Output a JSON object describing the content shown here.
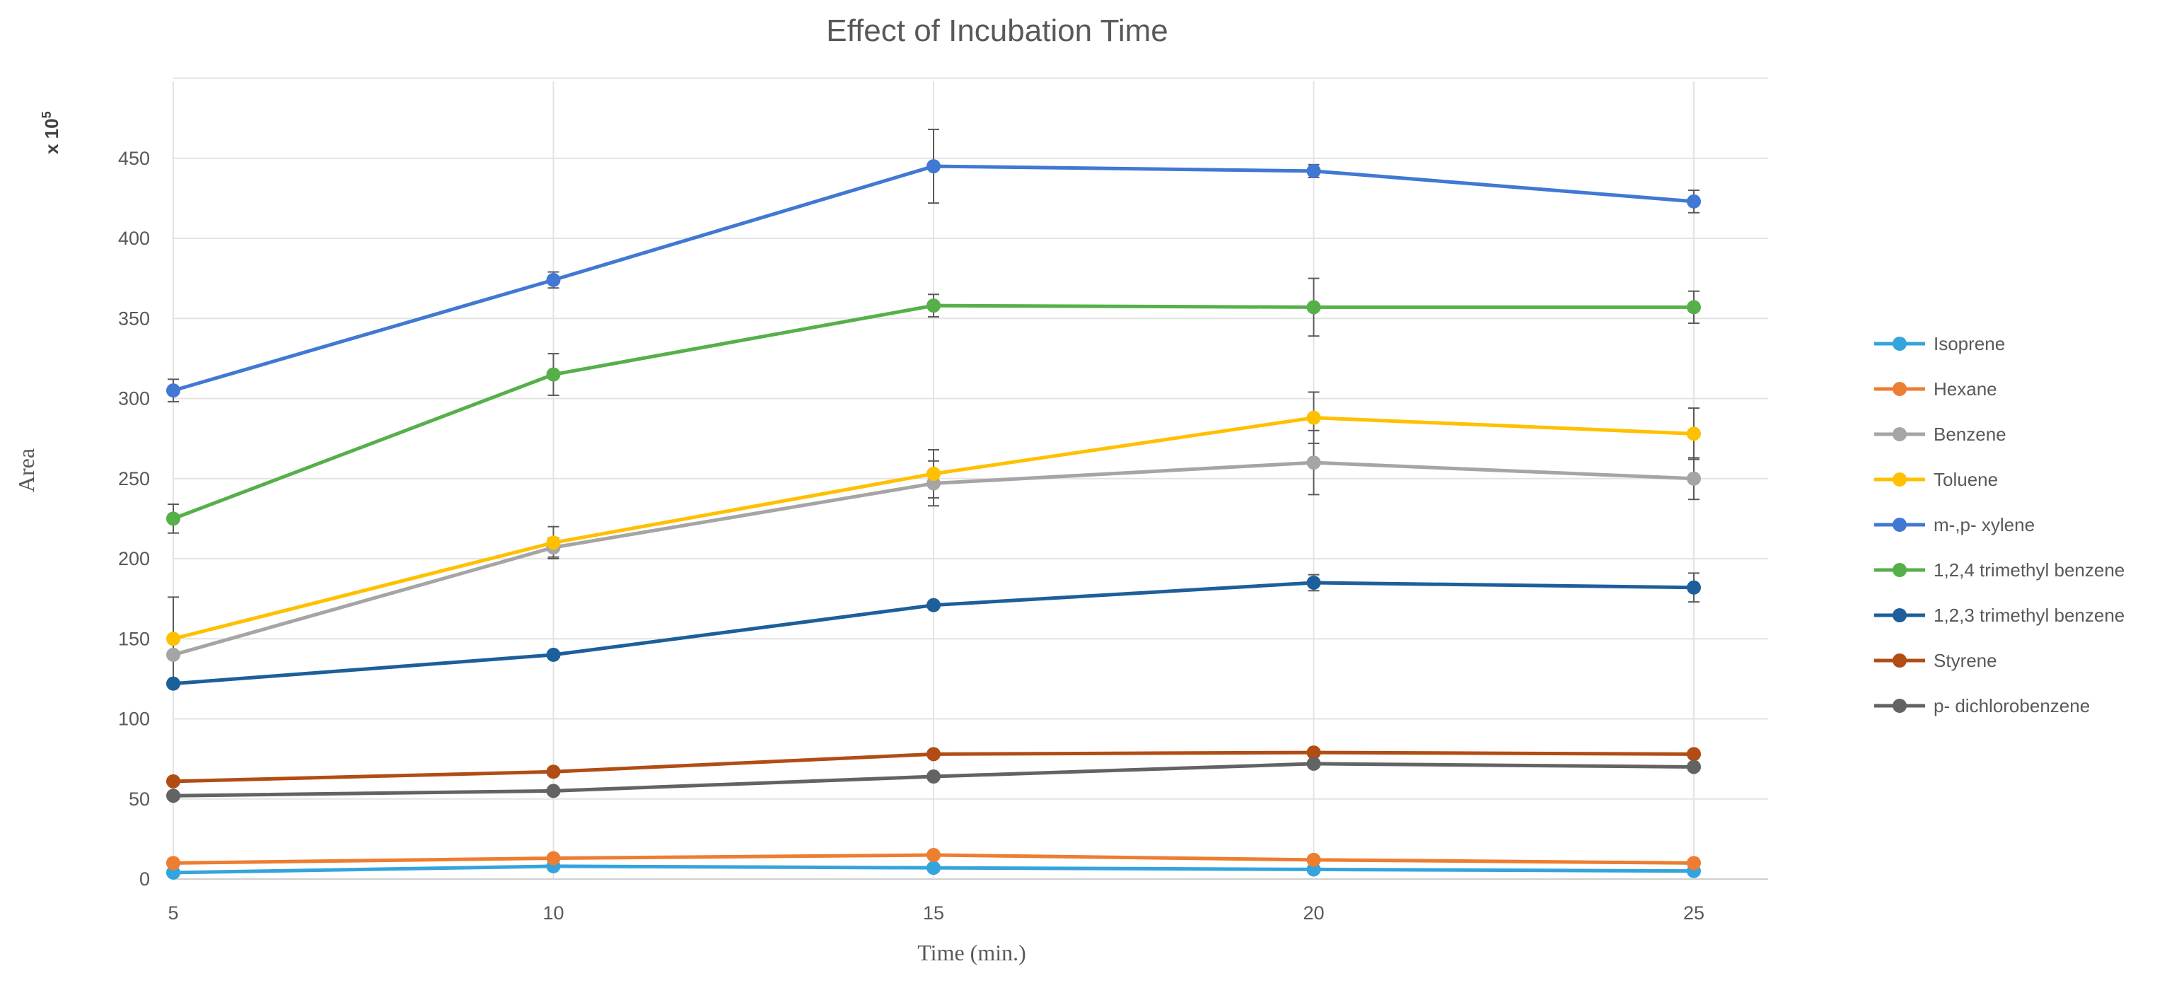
{
  "chart_data": {
    "type": "line",
    "title": "Effect of Incubation Time",
    "xlabel": "Time (min.)",
    "ylabel": "Area",
    "y_multiplier": "x 10",
    "y_multiplier_exp": "5",
    "x": [
      5,
      10,
      15,
      20,
      25
    ],
    "x_ticks": [
      "5",
      "10",
      "15",
      "20",
      "25"
    ],
    "xlim": [
      5,
      27
    ],
    "ylim": [
      0,
      500
    ],
    "y_ticks": [
      "0",
      "50",
      "100",
      "150",
      "200",
      "250",
      "300",
      "350",
      "400",
      "450"
    ],
    "grid": true,
    "legend_position": "right",
    "series": [
      {
        "name": "Isoprene",
        "color": "#35a4dc",
        "values": [
          4,
          8,
          7,
          6,
          5
        ],
        "errors": [
          0,
          0,
          0,
          0,
          0
        ]
      },
      {
        "name": "Hexane",
        "color": "#ed7d31",
        "values": [
          10,
          13,
          15,
          12,
          10
        ],
        "errors": [
          0,
          0,
          0,
          0,
          0
        ]
      },
      {
        "name": "Benzene",
        "color": "#a5a5a5",
        "values": [
          140,
          207,
          247,
          260,
          250
        ],
        "errors": [
          0,
          6,
          14,
          20,
          13
        ]
      },
      {
        "name": "Toluene",
        "color": "#ffc000",
        "values": [
          150,
          210,
          253,
          288,
          278
        ],
        "errors": [
          26,
          10,
          15,
          16,
          16
        ]
      },
      {
        "name": "m-,p- xylene",
        "color": "#4178d3",
        "values": [
          305,
          374,
          445,
          442,
          423
        ],
        "errors": [
          7,
          5,
          23,
          4,
          7
        ]
      },
      {
        "name": "1,2,4 trimethyl benzene",
        "color": "#56b04a",
        "values": [
          225,
          315,
          358,
          357,
          357
        ],
        "errors": [
          9,
          13,
          7,
          18,
          10
        ]
      },
      {
        "name": "1,2,3 trimethyl benzene",
        "color": "#1d5f9a",
        "values": [
          122,
          140,
          171,
          185,
          182
        ],
        "errors": [
          0,
          0,
          0,
          5,
          9
        ]
      },
      {
        "name": "Styrene",
        "color": "#b14d14",
        "values": [
          61,
          67,
          78,
          79,
          78
        ],
        "errors": [
          0,
          0,
          0,
          0,
          0
        ]
      },
      {
        "name": "p- dichlorobenzene",
        "color": "#636363",
        "values": [
          52,
          55,
          64,
          72,
          70
        ],
        "errors": [
          0,
          0,
          0,
          0,
          0
        ]
      }
    ]
  }
}
